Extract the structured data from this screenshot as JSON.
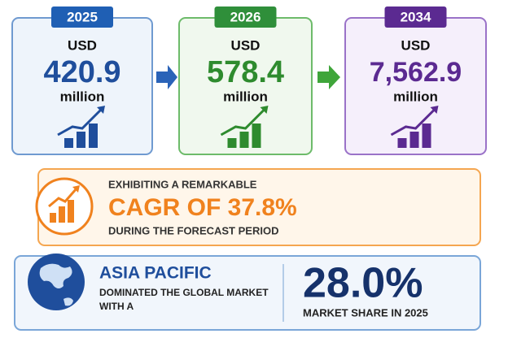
{
  "cards": [
    {
      "year": "2025",
      "currency": "USD",
      "value": "420.9",
      "unit": "million"
    },
    {
      "year": "2026",
      "currency": "USD",
      "value": "578.4",
      "unit": "million"
    },
    {
      "year": "2034",
      "currency": "USD",
      "value": "7,562.9",
      "unit": "million"
    }
  ],
  "cagr": {
    "intro": "EXHIBITING A REMARKABLE",
    "headline": "CAGR OF 37.8%",
    "note": "DURING THE FORECAST PERIOD"
  },
  "region": {
    "name": "ASIA PACIFIC",
    "line1": "DOMINATED THE GLOBAL MARKET",
    "line2": "WITH A",
    "share": "28.0%",
    "share_label": "MARKET SHARE IN 2025"
  }
}
